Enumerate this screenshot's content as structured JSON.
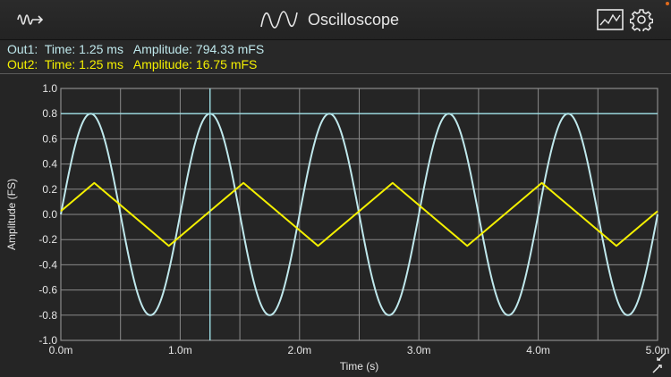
{
  "header": {
    "title": "Oscilloscope",
    "left_icon": "signal-generator-icon",
    "title_icon": "sine-wave-icon",
    "chart_icon": "chart-view-icon",
    "settings_icon": "gear-icon"
  },
  "readouts": [
    {
      "label": "Out1:",
      "time_label": "Time:",
      "time": "1.25 ms",
      "amp_label": "Amplitude:",
      "amplitude": "794.33 mFS",
      "color": "#bfe8ec"
    },
    {
      "label": "Out2:",
      "time_label": "Time:",
      "time": "1.25 ms",
      "amp_label": "Amplitude:",
      "amplitude": "16.75 mFS",
      "color": "#f4f000"
    }
  ],
  "colors": {
    "background": "#000000",
    "panel": "#282828",
    "plot_background": "#252525",
    "grid": "#8a8a8a",
    "out1": "#bfe8ec",
    "out2": "#f4f000",
    "cursor": "#9fe0e6"
  },
  "chart_data": {
    "type": "line",
    "xlabel": "Time (s)",
    "ylabel": "Amplitude (FS)",
    "xlim": [
      0,
      5.0
    ],
    "ylim": [
      -1.0,
      1.0
    ],
    "x_unit": "ms",
    "grid": true,
    "x_ticks": [
      0.0,
      1.0,
      2.0,
      3.0,
      4.0,
      5.0
    ],
    "x_tick_labels": [
      "0.0m",
      "1.0m",
      "2.0m",
      "3.0m",
      "4.0m",
      "5.0m"
    ],
    "y_ticks": [
      1.0,
      0.8,
      0.6,
      0.4,
      0.2,
      0.0,
      -0.2,
      -0.4,
      -0.6,
      -0.8,
      -1.0
    ],
    "y_tick_labels": [
      "1.0",
      "0.8",
      "0.6",
      "0.4",
      "0.2",
      "0.0",
      "-0.2",
      "-0.4",
      "-0.6",
      "-0.8",
      "-1.0"
    ],
    "series": [
      {
        "name": "Out1",
        "shape": "sine",
        "amplitude": 0.8,
        "frequency_khz": 1.0,
        "phase_deg": 0,
        "color": "#bfe8ec"
      },
      {
        "name": "Out2",
        "shape": "triangle",
        "amplitude": 0.25,
        "period_ms": 1.25,
        "peak_at_ms": 0.28,
        "color": "#f4f000"
      }
    ],
    "cursor": {
      "time_ms": 1.25,
      "level": 0.8
    }
  }
}
